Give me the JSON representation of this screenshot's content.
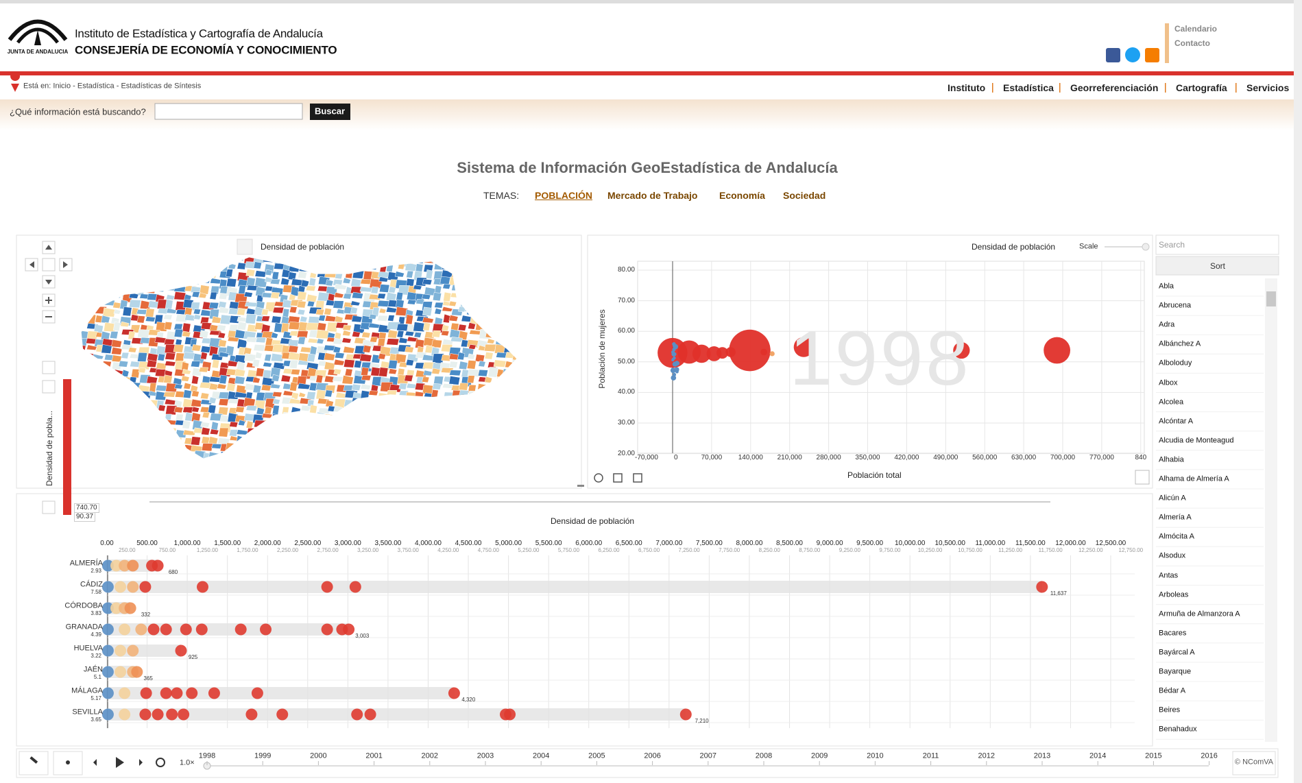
{
  "header": {
    "logo_text": "JUNTA DE ANDALUCIA",
    "line1": "Instituto de Estadística y Cartografía de Andalucía",
    "line2": "CONSEJERÍA DE ECONOMÍA Y CONOCIMIENTO",
    "links": [
      "Calendario",
      "Contacto"
    ]
  },
  "breadcrumb": "Está en: Inicio - Estadística - Estadísticas de Síntesis",
  "nav": [
    "Instituto",
    "Estadística",
    "Georreferenciación",
    "Cartografía",
    "Servicios"
  ],
  "search": {
    "label": "¿Qué información está buscando?",
    "button": "Buscar"
  },
  "title": "Sistema de Información GeoEstadística de Andalucía",
  "themes": {
    "label": "TEMAS:",
    "items": [
      "POBLACIÓN",
      "Mercado de Trabajo",
      "Economía",
      "Sociedad"
    ]
  },
  "map_panel": {
    "indicator": "Densidad de población",
    "legend_label": "Densidad de pobla...",
    "legend_max": "740.70",
    "legend_min": "90.37"
  },
  "bubble_chart": {
    "color_indicator": "Densidad de población",
    "scale_label": "Scale",
    "y_indicator": "Población de mujeres",
    "x_indicator": "Población total",
    "year_watermark": "1998",
    "yticks": [
      "80.00",
      "70.00",
      "60.00",
      "50.00",
      "40.00",
      "30.00",
      "20.00"
    ],
    "xticks": [
      "-70,000",
      "0",
      "70,000",
      "140,000",
      "210,000",
      "280,000",
      "350,000",
      "420,000",
      "490,000",
      "560,000",
      "630,000",
      "700,000",
      "770,000",
      "840"
    ]
  },
  "dot_chart": {
    "indicator": "Densidad de población",
    "major_ticks": [
      "0.00",
      "500.00",
      "1,000.00",
      "1,500.00",
      "2,000.00",
      "2,500.00",
      "3,000.00",
      "3,500.00",
      "4,000.00",
      "4,500.00",
      "5,000.00",
      "5,500.00",
      "6,000.00",
      "6,500.00",
      "7,000.00",
      "7,500.00",
      "8,000.00",
      "8,500.00",
      "9,000.00",
      "9,500.00",
      "10,000.00",
      "10,500.00",
      "11,000.00",
      "11,500.00",
      "12,000.00",
      "12,500.00"
    ],
    "minor_ticks": [
      "250.00",
      "750.00",
      "1,250.00",
      "1,750.00",
      "2,250.00",
      "2,750.00",
      "3,250.00",
      "3,750.00",
      "4,250.00",
      "4,750.00",
      "5,250.00",
      "5,750.00",
      "6,250.00",
      "6,750.00",
      "7,250.00",
      "7,750.00",
      "8,250.00",
      "8,750.00",
      "9,250.00",
      "9,750.00",
      "10,250.00",
      "10,750.00",
      "11,250.00",
      "11,750.00",
      "12,250.00",
      "12,750.00"
    ],
    "rows": [
      {
        "name": "ALMERÍA",
        "min": "2.93",
        "max": "680"
      },
      {
        "name": "CÁDIZ",
        "min": "7.58",
        "max": "11,637"
      },
      {
        "name": "CÓRDOBA",
        "min": "3.83",
        "max": "332"
      },
      {
        "name": "GRANADA",
        "min": "4.39",
        "max": "3,003"
      },
      {
        "name": "HUELVA",
        "min": "3.22",
        "max": "925"
      },
      {
        "name": "JAÉN",
        "min": "5.1",
        "max": "365"
      },
      {
        "name": "MÁLAGA",
        "min": "5.17",
        "max": "4,320"
      },
      {
        "name": "SEVILLA",
        "min": "3.65",
        "max": "7,210"
      }
    ]
  },
  "list_panel": {
    "search_placeholder": "Search",
    "sort_button": "Sort",
    "items": [
      "Abla",
      "Abrucena",
      "Adra",
      "Albánchez A",
      "Alboloduy",
      "Albox",
      "Alcolea",
      "Alcóntar A",
      "Alcudia de Monteagud",
      "Alhabia",
      "Alhama de Almería A",
      "Alicún A",
      "Almería A",
      "Almócita A",
      "Alsodux",
      "Antas",
      "Arboleas",
      "Armuña de Almanzora A",
      "Bacares",
      "Bayárcal A",
      "Bayarque",
      "Bédar A",
      "Beires",
      "Benahadux"
    ]
  },
  "timeline": {
    "speed": "1.0×",
    "years": [
      "1998",
      "1999",
      "2000",
      "2001",
      "2002",
      "2003",
      "2004",
      "2005",
      "2006",
      "2007",
      "2008",
      "2009",
      "2010",
      "2011",
      "2012",
      "2013",
      "2014",
      "2015",
      "2016"
    ],
    "credit": "© NComVA"
  }
}
